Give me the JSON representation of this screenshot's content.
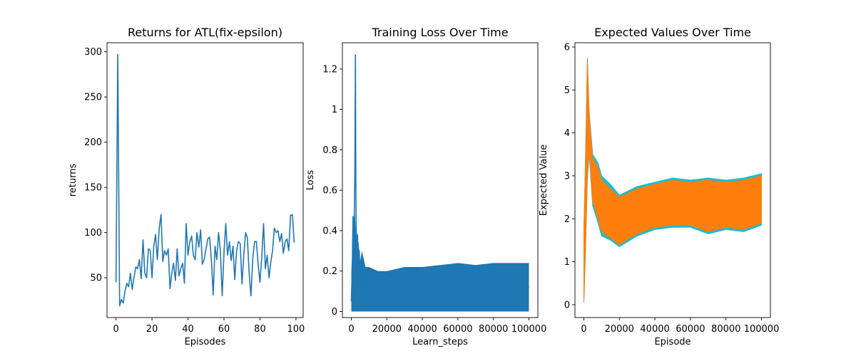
{
  "chart_data": [
    {
      "type": "line",
      "title": "Returns for ATL(fix-epsilon)",
      "xlabel": "Episodes",
      "ylabel": "returns",
      "xlim": [
        -5,
        104
      ],
      "ylim": [
        6,
        310
      ],
      "xticks": [
        0,
        20,
        40,
        60,
        80,
        100
      ],
      "yticks": [
        50,
        100,
        150,
        200,
        250,
        300
      ],
      "grid": false,
      "series": [
        {
          "color": "#1f77b4",
          "x": [
            0,
            1,
            2,
            3,
            4,
            5,
            6,
            7,
            8,
            9,
            10,
            11,
            12,
            13,
            14,
            15,
            16,
            17,
            18,
            19,
            20,
            21,
            22,
            23,
            24,
            25,
            26,
            27,
            28,
            29,
            30,
            31,
            32,
            33,
            34,
            35,
            36,
            37,
            38,
            39,
            40,
            41,
            42,
            43,
            44,
            45,
            46,
            47,
            48,
            49,
            50,
            51,
            52,
            53,
            54,
            55,
            56,
            57,
            58,
            59,
            60,
            61,
            62,
            63,
            64,
            65,
            66,
            67,
            68,
            69,
            70,
            71,
            72,
            73,
            74,
            75,
            76,
            77,
            78,
            79,
            80,
            81,
            82,
            83,
            84,
            85,
            86,
            87,
            88,
            89,
            90,
            91,
            92,
            93,
            94,
            95,
            96,
            97,
            98,
            99
          ],
          "y": [
            45,
            297,
            19,
            26,
            22,
            35,
            44,
            40,
            55,
            37,
            50,
            62,
            60,
            70,
            49,
            92,
            55,
            50,
            82,
            80,
            50,
            85,
            98,
            70,
            105,
            120,
            68,
            80,
            75,
            82,
            38,
            55,
            66,
            47,
            82,
            52,
            60,
            66,
            44,
            110,
            75,
            90,
            96,
            75,
            70,
            100,
            84,
            103,
            65,
            70,
            82,
            93,
            95,
            70,
            31,
            85,
            70,
            100,
            80,
            30,
            78,
            110,
            75,
            90,
            69,
            85,
            48,
            80,
            90,
            88,
            43,
            75,
            100,
            94,
            55,
            30,
            72,
            90,
            90,
            65,
            45,
            73,
            110,
            60,
            75,
            50,
            67,
            80,
            105,
            100,
            102,
            90,
            99,
            77,
            90,
            93,
            80,
            119,
            120,
            89
          ]
        }
      ]
    },
    {
      "type": "line",
      "title": "Training Loss Over Time",
      "xlabel": "Learn_steps",
      "ylabel": "Loss",
      "xlim": [
        -5000,
        105000
      ],
      "ylim": [
        -0.03,
        1.33
      ],
      "xticks": [
        0,
        20000,
        40000,
        60000,
        80000,
        100000
      ],
      "yticks": [
        0.0,
        0.2,
        0.4,
        0.6,
        0.8,
        1.0,
        1.2
      ],
      "grid": false,
      "series": [
        {
          "color": "#1f77b4",
          "x": [
            0,
            500,
            1000,
            1500,
            2000,
            2300,
            2600,
            3000,
            3500,
            4000,
            4500,
            5000,
            6000,
            7000,
            8000,
            9000,
            10000,
            12000,
            14000,
            16000,
            18000,
            20000,
            22000,
            25000,
            28000,
            30000,
            32000,
            35000,
            38000,
            40000,
            43000,
            46000,
            50000,
            53000,
            56000,
            60000,
            63000,
            66000,
            70000,
            73000,
            76000,
            80000,
            83000,
            86000,
            90000,
            93000,
            96000,
            98000,
            100000
          ],
          "y": [
            0.05,
            0.2,
            0.47,
            0.35,
            0.66,
            1.27,
            0.6,
            0.22,
            0.38,
            0.15,
            0.3,
            0.12,
            0.25,
            0.1,
            0.2,
            0.18,
            0.12,
            0.2,
            0.15,
            0.18,
            0.1,
            0.15,
            0.2,
            0.12,
            0.18,
            0.14,
            0.2,
            0.1,
            0.15,
            0.18,
            0.12,
            0.2,
            0.16,
            0.1,
            0.2,
            0.15,
            0.18,
            0.12,
            0.2,
            0.1,
            0.18,
            0.15,
            0.2,
            0.12,
            0.18,
            0.1,
            0.2,
            0.15,
            0.12
          ],
          "band": {
            "x": [
              0,
              1000,
              2000,
              3000,
              4000,
              5000,
              6000,
              8000,
              10000,
              15000,
              20000,
              30000,
              40000,
              50000,
              60000,
              70000,
              80000,
              90000,
              100000
            ],
            "low": [
              0.0,
              0.0,
              0.0,
              0.0,
              0.0,
              0.0,
              0.0,
              0.0,
              0.0,
              0.0,
              0.0,
              0.0,
              0.0,
              0.0,
              0.0,
              0.0,
              0.0,
              0.0,
              0.0
            ],
            "high": [
              0.2,
              0.35,
              0.5,
              0.3,
              0.35,
              0.25,
              0.3,
              0.22,
              0.22,
              0.2,
              0.2,
              0.22,
              0.22,
              0.23,
              0.24,
              0.23,
              0.24,
              0.24,
              0.24
            ]
          }
        }
      ]
    },
    {
      "type": "area",
      "title": "Expected Values Over Time",
      "xlabel": "Episode",
      "ylabel": "Expected Value",
      "xlim": [
        -5000,
        105000
      ],
      "ylim": [
        -0.3,
        6.1
      ],
      "xticks": [
        0,
        20000,
        40000,
        60000,
        80000,
        100000
      ],
      "yticks": [
        0,
        1,
        2,
        3,
        4,
        5,
        6
      ],
      "grid": false,
      "series": [
        {
          "color": "#17becf",
          "x": [
            0,
            1000,
            2000,
            3000,
            5000,
            8000,
            10000,
            15000,
            20000,
            30000,
            40000,
            50000,
            60000,
            70000,
            80000,
            90000,
            100000
          ],
          "low": [
            0.05,
            1.3,
            2.9,
            3.5,
            2.3,
            1.9,
            1.6,
            1.5,
            1.35,
            1.6,
            1.75,
            1.8,
            1.8,
            1.65,
            1.75,
            1.7,
            1.85
          ],
          "high": [
            1.8,
            3.5,
            5.75,
            4.5,
            3.5,
            3.3,
            3.0,
            2.8,
            2.55,
            2.75,
            2.85,
            2.95,
            2.9,
            2.95,
            2.9,
            2.95,
            3.05
          ]
        },
        {
          "color": "#ff7f0e",
          "x": [
            0,
            1000,
            2000,
            3000,
            5000,
            8000,
            10000,
            15000,
            20000,
            30000,
            40000,
            50000,
            60000,
            70000,
            80000,
            90000,
            100000
          ],
          "low": [
            0.1,
            1.4,
            3.0,
            3.6,
            2.4,
            2.0,
            1.7,
            1.55,
            1.4,
            1.65,
            1.8,
            1.85,
            1.85,
            1.7,
            1.8,
            1.75,
            1.9
          ],
          "high": [
            1.7,
            3.4,
            5.7,
            4.4,
            3.4,
            3.2,
            2.9,
            2.7,
            2.5,
            2.7,
            2.8,
            2.9,
            2.85,
            2.9,
            2.85,
            2.9,
            3.0
          ]
        }
      ]
    }
  ]
}
